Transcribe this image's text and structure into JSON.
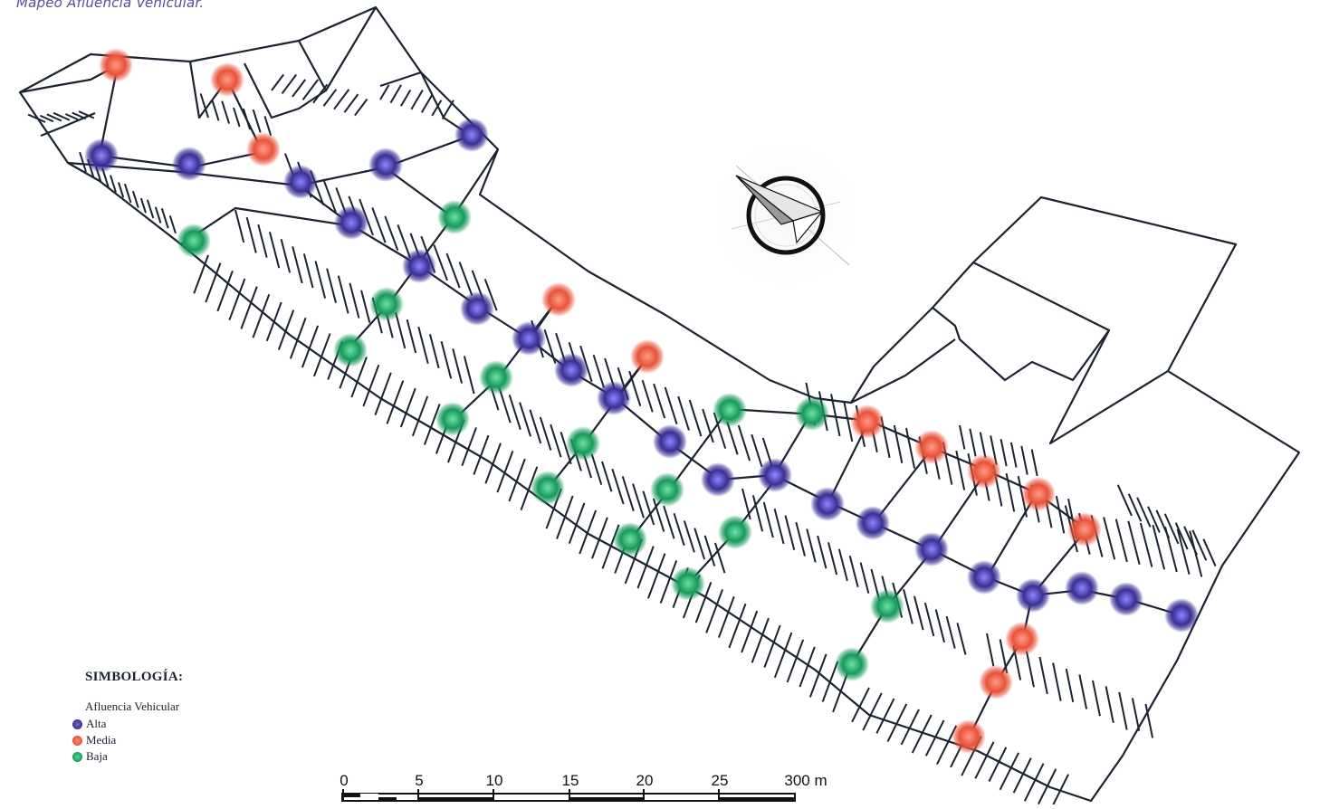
{
  "title": "Mapeo Afluencia Vehicular.",
  "legend": {
    "heading": "SIMBOLOGÍA:",
    "subtitle": "Afluencia Vehicular",
    "items": [
      {
        "label": "Alta",
        "color": "#3a2f93"
      },
      {
        "label": "Media",
        "color": "#e8523a"
      },
      {
        "label": "Baja",
        "color": "#17995a"
      }
    ]
  },
  "scale_bar": {
    "labels": [
      "0",
      "5",
      "10",
      "15",
      "20",
      "25",
      "300 m"
    ]
  },
  "north_arrow": {
    "icon": "north-arrow-icon"
  },
  "colors": {
    "alta": "#3a2f93",
    "media": "#e8523a",
    "baja": "#17995a",
    "parcel_outline": "#1b2230"
  }
}
